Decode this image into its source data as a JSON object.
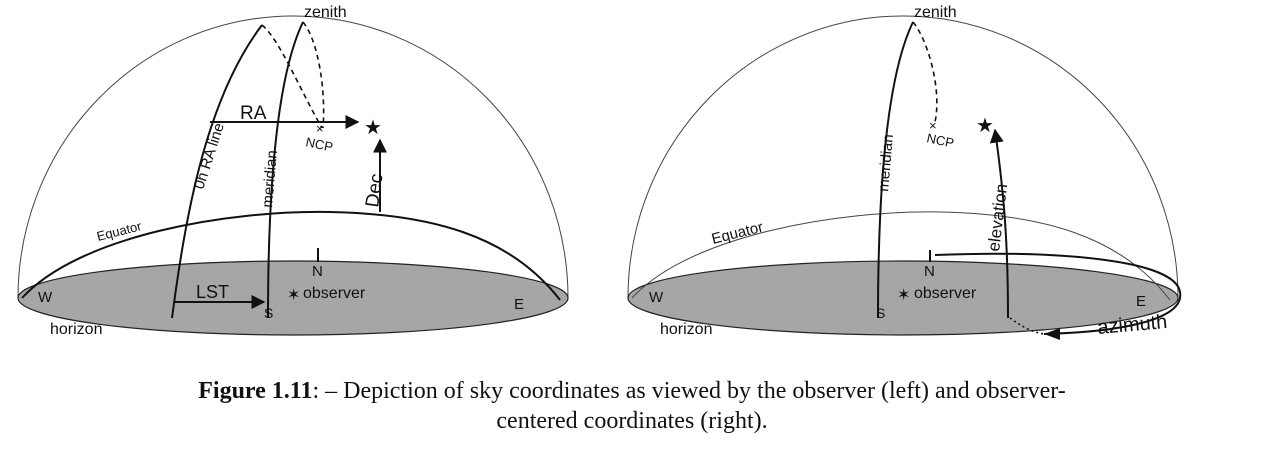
{
  "left_diagram": {
    "labels": {
      "zenith": "zenith",
      "ra_line": "0h RA line",
      "meridian": "meridian",
      "ra": "RA",
      "ncp": "NCP",
      "dec": "Dec",
      "equator": "Equator",
      "north": "N",
      "west": "W",
      "east": "E",
      "south": "S",
      "lst": "LST",
      "observer": "observer",
      "horizon": "horizon"
    }
  },
  "right_diagram": {
    "labels": {
      "zenith": "zenith",
      "meridian": "meridian",
      "ncp": "NCP",
      "elevation": "elevation",
      "equator": "Equator",
      "north": "N",
      "west": "W",
      "east": "E",
      "south": "S",
      "observer": "observer",
      "horizon": "horizon",
      "azimuth": "azimuth"
    }
  },
  "caption": {
    "label": "Figure 1.11",
    "text": ": – Depiction of sky coordinates as viewed by the observer (left) and observer-",
    "line2": "centered coordinates (right)."
  },
  "colors": {
    "horizon_fill": "#a6a6a6",
    "ink": "#111111"
  }
}
